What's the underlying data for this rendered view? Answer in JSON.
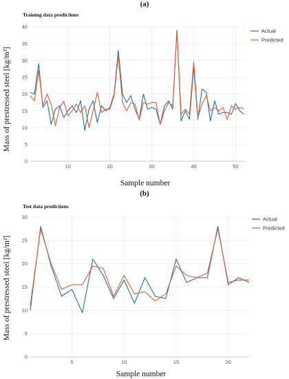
{
  "labels": {
    "a": "(a)",
    "b": "(b)"
  },
  "colors": {
    "actual": "#1f6fa8",
    "predicted": "#e05d26"
  },
  "chart_data": [
    {
      "type": "line",
      "title": "Training data predictions",
      "xlabel": "Sample number",
      "ylabel": "Mass of prestressed steel [kg/m²]",
      "xlim": [
        1,
        52.4
      ],
      "ylim": [
        0,
        40
      ],
      "xticks": [
        10,
        20,
        30,
        40,
        50
      ],
      "yticks": [
        0,
        5,
        10,
        15,
        20,
        25,
        30,
        35,
        40
      ],
      "grid": true,
      "legend": "top-right",
      "x": [
        1,
        2,
        3,
        4,
        5,
        6,
        7,
        8,
        9,
        10,
        11,
        12,
        13,
        14,
        15,
        16,
        17,
        18,
        19,
        20,
        21,
        22,
        23,
        24,
        25,
        26,
        27,
        28,
        29,
        30,
        31,
        32,
        33,
        34,
        35,
        36,
        37,
        38,
        39,
        40,
        41,
        42,
        43,
        44,
        45,
        46,
        47,
        48,
        49,
        50,
        51,
        52
      ],
      "series": [
        {
          "name": "Actual",
          "values": [
            20.5,
            20,
            29,
            16,
            18,
            11,
            15.5,
            16.5,
            13,
            15,
            16.5,
            14.5,
            18,
            9.2,
            15.5,
            18,
            11.5,
            16.5,
            15,
            16,
            20,
            33,
            20,
            17.5,
            19.5,
            15.5,
            12.5,
            20,
            15.5,
            16,
            15.5,
            11,
            16.5,
            18,
            15.5,
            39,
            12,
            15,
            12.5,
            28,
            12.5,
            21.5,
            20.5,
            12,
            18,
            14,
            14.5,
            14.5,
            14,
            17.2,
            15,
            14
          ]
        },
        {
          "name": "Predicted",
          "values": [
            19.5,
            18,
            27,
            16.5,
            20,
            17,
            10.5,
            16,
            17.8,
            13.5,
            15,
            17,
            14.5,
            16.5,
            10,
            15,
            20.5,
            14.5,
            15.5,
            15.5,
            19.5,
            31.5,
            17.5,
            15,
            17.5,
            17,
            12.2,
            17.5,
            17,
            17.5,
            17.5,
            11,
            15,
            17.5,
            16.5,
            39,
            14,
            15.5,
            14,
            29.5,
            13,
            17,
            19.5,
            15,
            16,
            15,
            16,
            12.5,
            16.5,
            15.5,
            16,
            15.5
          ]
        }
      ]
    },
    {
      "type": "line",
      "title": "Test data predictions",
      "xlabel": "Sample number",
      "ylabel": "Mass of prestressed steel [kg/m²]",
      "xlim": [
        1,
        22
      ],
      "ylim": [
        0,
        30
      ],
      "xticks": [
        5,
        10,
        15,
        20
      ],
      "yticks": [
        0,
        5,
        10,
        15,
        20,
        25,
        30
      ],
      "grid": true,
      "legend": "top-right",
      "x": [
        1,
        2,
        3,
        4,
        5,
        6,
        7,
        8,
        9,
        10,
        11,
        12,
        13,
        14,
        15,
        16,
        17,
        18,
        19,
        20,
        21,
        22
      ],
      "series": [
        {
          "name": "Actual",
          "values": [
            10,
            28,
            19.5,
            13,
            14.5,
            9.5,
            21,
            17.5,
            12.5,
            16.5,
            11.5,
            17,
            13,
            12.5,
            21,
            16,
            17,
            17,
            28,
            15.5,
            17,
            16
          ]
        },
        {
          "name": "Predicted",
          "values": [
            11,
            27.5,
            20,
            14.5,
            15.5,
            15.5,
            19.5,
            19,
            13,
            17.5,
            13.5,
            14,
            12,
            13.5,
            19.5,
            17.5,
            17,
            18,
            27.5,
            16,
            16.5,
            16.5
          ]
        }
      ]
    }
  ]
}
